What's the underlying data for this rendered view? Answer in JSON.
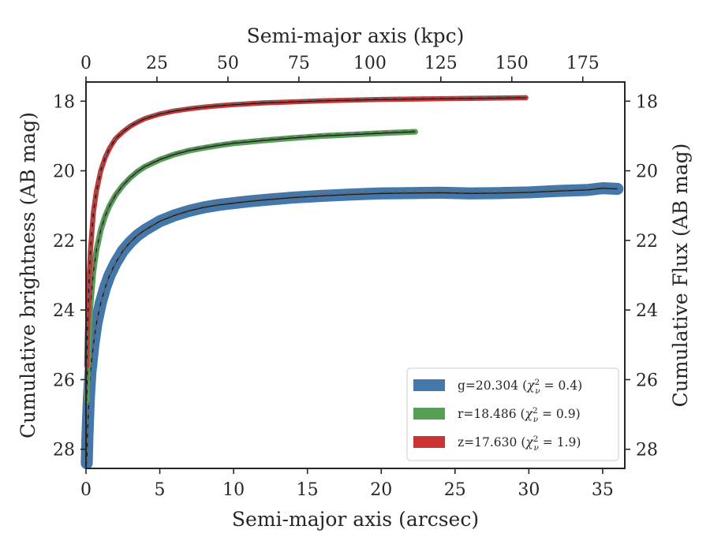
{
  "chart_data": {
    "type": "line",
    "x_bottom_label": "Semi-major axis (arcsec)",
    "x_top_label": "Semi-major axis (kpc)",
    "y_left_label": "Cumulative brightness (AB mag)",
    "y_right_label": "Cumulative Flux (AB mag)",
    "x_range": [
      0,
      36.5
    ],
    "y_range": [
      28.55,
      17.45
    ],
    "y_inverted": true,
    "x_ticks": [
      0,
      5,
      10,
      15,
      20,
      25,
      30,
      35
    ],
    "x_tick_labels": [
      "0",
      "5",
      "10",
      "15",
      "20",
      "25",
      "30",
      "35"
    ],
    "x_top_ticks": [
      0,
      25,
      50,
      75,
      100,
      125,
      150,
      175
    ],
    "x_top_tick_labels": [
      "0",
      "25",
      "50",
      "75",
      "100",
      "125",
      "150",
      "175"
    ],
    "kpc_per_arcsec": 5.2,
    "y_ticks": [
      18,
      20,
      22,
      24,
      26,
      28
    ],
    "y_tick_labels": [
      "18",
      "20",
      "22",
      "24",
      "26",
      "28"
    ],
    "grid": false,
    "legend_position": "lower-right",
    "series": [
      {
        "name": "g=20.304 (χ²ν = 0.4)",
        "label_main": "g=20.304 (",
        "label_chi": "χ",
        "label_sup": "2",
        "label_sub": "ν",
        "label_val": " = 0.4)",
        "color": "#4477aa",
        "band_width": 0.3,
        "x": [
          0.05,
          0.1,
          0.2,
          0.3,
          0.5,
          0.7,
          1.0,
          1.3,
          1.6,
          2.0,
          2.5,
          3.0,
          3.5,
          4.0,
          5.0,
          6.0,
          7.0,
          8.0,
          9.0,
          10.0,
          11.0,
          12.0,
          14.0,
          16.0,
          18.0,
          20.0,
          22.0,
          24.0,
          26.0,
          28.0,
          30.0,
          32.0,
          34.0,
          35.0,
          36.0
        ],
        "y": [
          28.4,
          27.6,
          26.5,
          25.8,
          25.0,
          24.4,
          23.8,
          23.35,
          23.0,
          22.65,
          22.3,
          22.05,
          21.85,
          21.7,
          21.45,
          21.28,
          21.15,
          21.05,
          20.98,
          20.93,
          20.88,
          20.84,
          20.77,
          20.72,
          20.68,
          20.65,
          20.64,
          20.63,
          20.65,
          20.64,
          20.62,
          20.58,
          20.55,
          20.5,
          20.52
        ]
      },
      {
        "name": "r=18.486 (χ²ν = 0.9)",
        "label_main": "r=18.486 (",
        "label_chi": "χ",
        "label_sup": "2",
        "label_sub": "ν",
        "label_val": " = 0.9)",
        "color": "#55a054",
        "band_width": 0.12,
        "x": [
          0.05,
          0.1,
          0.2,
          0.3,
          0.5,
          0.7,
          1.0,
          1.3,
          1.6,
          2.0,
          2.5,
          3.0,
          3.5,
          4.0,
          5.0,
          6.0,
          7.0,
          8.0,
          9.0,
          10.0,
          11.0,
          12.0,
          14.0,
          16.0,
          18.0,
          20.0,
          22.3
        ],
        "y": [
          26.6,
          25.8,
          24.7,
          23.9,
          22.9,
          22.3,
          21.7,
          21.3,
          21.0,
          20.7,
          20.42,
          20.2,
          20.02,
          19.88,
          19.68,
          19.53,
          19.42,
          19.34,
          19.27,
          19.21,
          19.17,
          19.13,
          19.06,
          19.0,
          18.96,
          18.92,
          18.88
        ]
      },
      {
        "name": "z=17.630 (χ²ν = 1.9)",
        "label_main": "z=17.630 (",
        "label_chi": "χ",
        "label_sup": "2",
        "label_sub": "ν",
        "label_val": " = 1.9)",
        "color": "#cc3333",
        "band_width": 0.1,
        "x": [
          0.05,
          0.1,
          0.2,
          0.3,
          0.5,
          0.7,
          1.0,
          1.3,
          1.6,
          2.0,
          2.5,
          3.0,
          3.5,
          4.0,
          5.0,
          6.0,
          7.0,
          8.0,
          9.0,
          10.0,
          12.0,
          14.0,
          16.0,
          18.0,
          20.0,
          22.0,
          24.0,
          26.0,
          28.0,
          29.8
        ],
        "y": [
          25.6,
          24.6,
          23.2,
          22.3,
          21.2,
          20.6,
          20.0,
          19.62,
          19.35,
          19.08,
          18.88,
          18.72,
          18.6,
          18.5,
          18.37,
          18.28,
          18.22,
          18.17,
          18.13,
          18.1,
          18.05,
          18.02,
          17.99,
          17.97,
          17.95,
          17.94,
          17.93,
          17.92,
          17.91,
          17.9
        ]
      }
    ]
  }
}
